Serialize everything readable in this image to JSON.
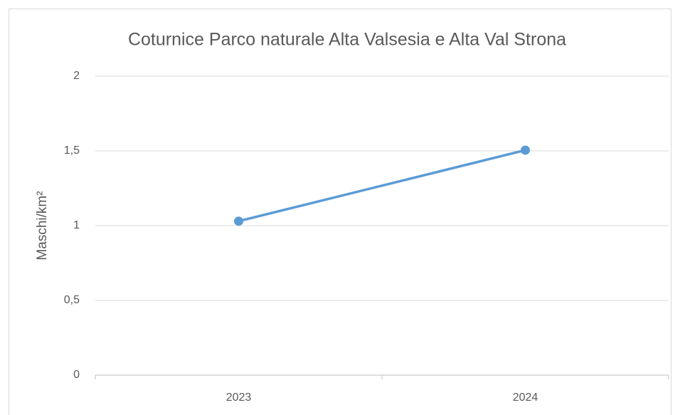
{
  "chart_data": {
    "type": "line",
    "title": "Coturnice Parco naturale Alta Valsesia e Alta Val Strona",
    "y_label": "Maschi/km²",
    "categories": [
      "2023",
      "2024"
    ],
    "values": [
      1.03,
      1.505
    ],
    "color": "#5b9bd5",
    "ylim": [
      0,
      2
    ],
    "yticks": [
      0,
      {
        "value": 0.5,
        "label": "0,5"
      },
      1,
      {
        "value": 1.5,
        "label": "1,5"
      },
      2
    ],
    "grid": true
  }
}
